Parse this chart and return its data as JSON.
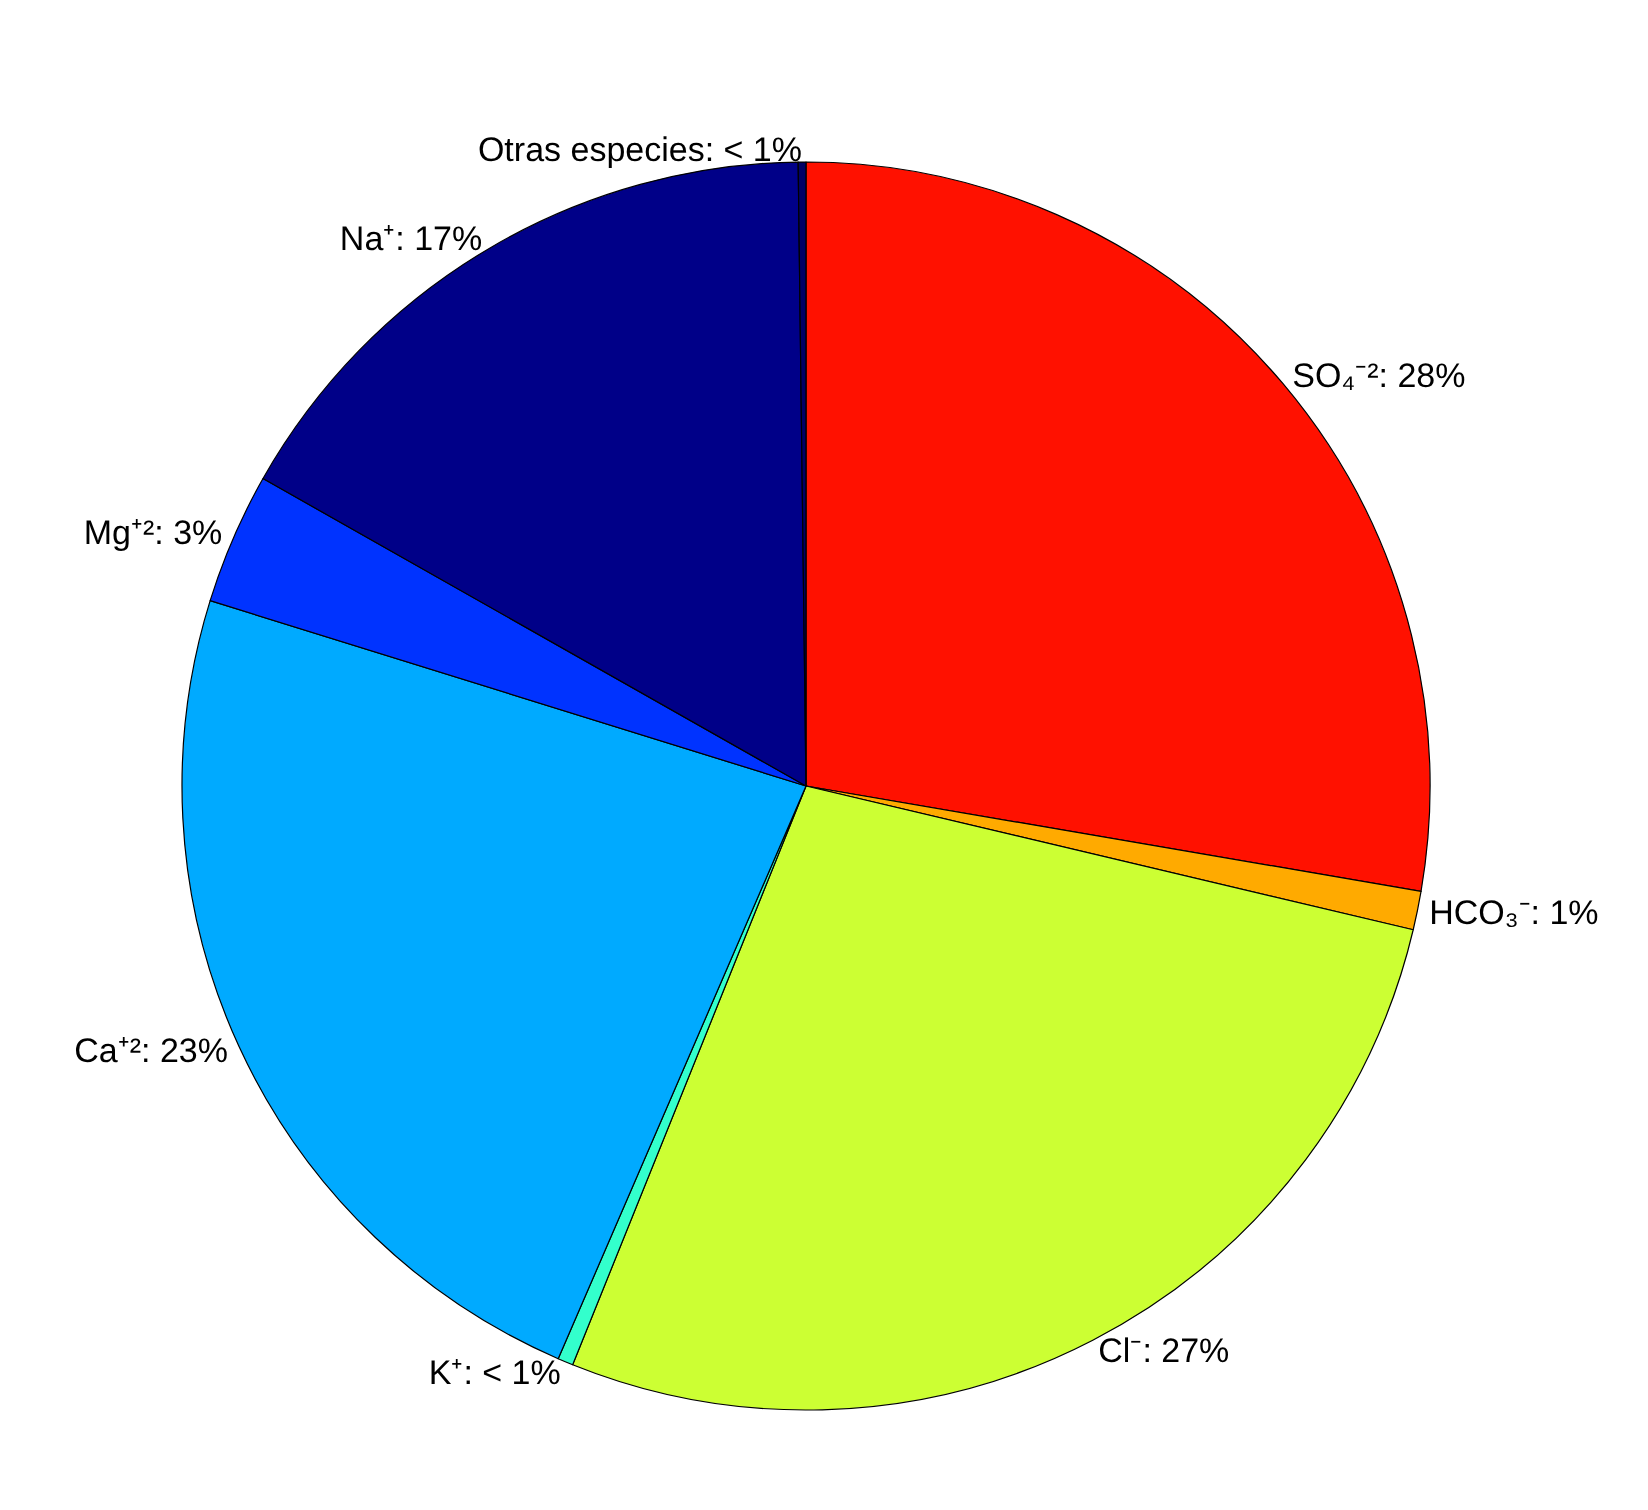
{
  "chart_data": {
    "type": "pie",
    "categories": [
      "SO₄⁻²",
      "HCO₃⁻",
      "Cl⁻",
      "K⁺",
      "Ca⁺²",
      "Mg⁺²",
      "Na⁺",
      "Otras especies"
    ],
    "values": [
      27.7,
      1.0,
      27.4,
      0.4,
      23.3,
      3.4,
      16.6,
      0.2
    ],
    "value_labels": [
      ": 28%",
      ": 1%",
      ": 27%",
      ": < 1%",
      ": 23%",
      ": 3%",
      ": 17%",
      ": < 1%"
    ],
    "colors": [
      "#ff1100",
      "#ffaa00",
      "#ccff33",
      "#33ffcc",
      "#00aaff",
      "#0033ff",
      "#000088",
      "#000066"
    ],
    "legend": false
  }
}
